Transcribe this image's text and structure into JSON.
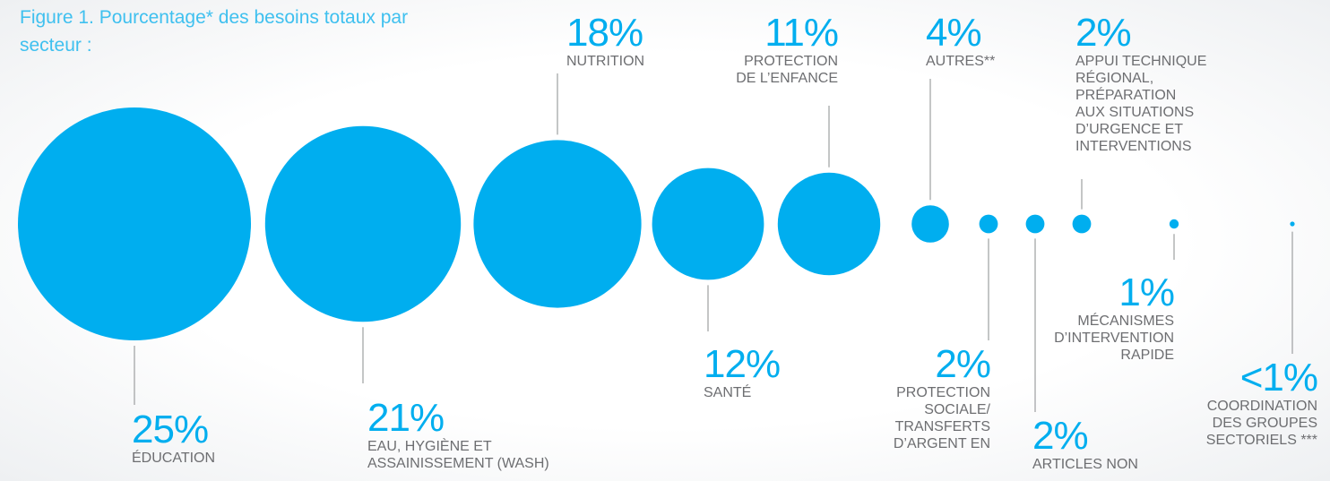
{
  "chart_data": {
    "type": "bubble",
    "title": "Figure 1. Pourcentage* des besoins totaux par\nsecteur :",
    "color": "#00aeef",
    "categories": [
      "ÉDUCATION",
      "EAU, HYGIÈNE ET\nASSAINISSEMENT (WASH)",
      "NUTRITION",
      "SANTÉ",
      "PROTECTION\nDE L’ENFANCE",
      "AUTRES**",
      "PROTECTION\nSOCIALE/\nTRANSFERTS\nD’ARGENT EN",
      "ARTICLES NON",
      "APPUI TECHNIQUE\nRÉGIONAL,\nPRÉPARATION\nAUX SITUATIONS\nD’URGENCE ET\nINTERVENTIONS",
      "MÉCANISMES\nD’INTERVENTION\nRAPIDE",
      "COORDINATION\nDES GROUPES\nSECTORIELS ***"
    ],
    "values": [
      25,
      21,
      18,
      12,
      11,
      4,
      2,
      2,
      2,
      1,
      0.5
    ],
    "value_labels": [
      "25%",
      "21%",
      "18%",
      "12%",
      "11%",
      "4%",
      "2%",
      "2%",
      "2%",
      "1%",
      "<1%"
    ]
  }
}
